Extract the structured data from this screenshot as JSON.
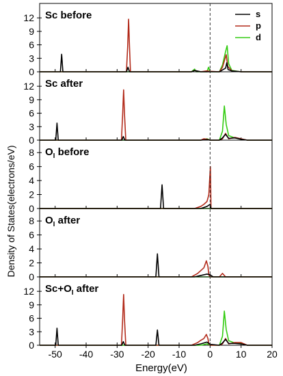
{
  "chart_data": {
    "type": "line",
    "xlabel": "Energy(eV)",
    "ylabel": "Density of States(electrons/eV)",
    "xlim": [
      -55,
      20
    ],
    "xticks": [
      -50,
      -40,
      -30,
      -20,
      -10,
      0,
      10,
      20
    ],
    "fermi_level": 0,
    "legend": {
      "placement": "top-right",
      "entries": [
        {
          "name": "s",
          "color": "#000000"
        },
        {
          "name": "p",
          "color": "#b22a1a"
        },
        {
          "name": "d",
          "color": "#33cc11"
        }
      ]
    },
    "panels": [
      {
        "title": "Sc before",
        "ylim": [
          0,
          14
        ],
        "yticks": [
          0,
          3,
          6,
          9,
          12
        ],
        "series": [
          {
            "name": "s",
            "points": [
              [
                -55,
                0
              ],
              [
                -48.3,
                0
              ],
              [
                -47.9,
                3.9
              ],
              [
                -47.5,
                0
              ],
              [
                -27,
                0
              ],
              [
                -26.5,
                1.0
              ],
              [
                -26,
                0
              ],
              [
                -6,
                0
              ],
              [
                -5,
                0.3
              ],
              [
                -3,
                0
              ],
              [
                3,
                0
              ],
              [
                4,
                0.4
              ],
              [
                5,
                0.8
              ],
              [
                5.4,
                2.0
              ],
              [
                5.8,
                0.5
              ],
              [
                7,
                0.2
              ],
              [
                10,
                0
              ],
              [
                20,
                0
              ]
            ]
          },
          {
            "name": "p",
            "points": [
              [
                -55,
                0
              ],
              [
                -27,
                0
              ],
              [
                -26.6,
                5.5
              ],
              [
                -26.3,
                11.7
              ],
              [
                -26,
                5.5
              ],
              [
                -25.7,
                0
              ],
              [
                -6,
                0
              ],
              [
                -5,
                0.3
              ],
              [
                -3,
                0
              ],
              [
                -1,
                0.2
              ],
              [
                0,
                0.1
              ],
              [
                3,
                0
              ],
              [
                4,
                1.0
              ],
              [
                5.2,
                3.8
              ],
              [
                5.7,
                1.2
              ],
              [
                7,
                0.2
              ],
              [
                10,
                0
              ],
              [
                20,
                0
              ]
            ]
          },
          {
            "name": "d",
            "points": [
              [
                -55,
                0
              ],
              [
                -6,
                0
              ],
              [
                -5,
                0.6
              ],
              [
                -4.5,
                0
              ],
              [
                -1,
                0
              ],
              [
                -0.5,
                1.0
              ],
              [
                0,
                0
              ],
              [
                3,
                0
              ],
              [
                4,
                1.5
              ],
              [
                5,
                4.5
              ],
              [
                5.5,
                5.8
              ],
              [
                6,
                1.8
              ],
              [
                7,
                0.3
              ],
              [
                10,
                0
              ],
              [
                20,
                0
              ]
            ]
          }
        ]
      },
      {
        "title": "Sc after",
        "ylim": [
          0,
          14
        ],
        "yticks": [
          0,
          3,
          6,
          9,
          12
        ],
        "series": [
          {
            "name": "s",
            "points": [
              [
                -55,
                0
              ],
              [
                -49.8,
                0
              ],
              [
                -49.4,
                3.8
              ],
              [
                -49,
                0
              ],
              [
                -28.5,
                0
              ],
              [
                -28,
                0.8
              ],
              [
                -27.5,
                0
              ],
              [
                -3,
                0
              ],
              [
                -1,
                0.1
              ],
              [
                0,
                0
              ],
              [
                3,
                0
              ],
              [
                4,
                0.5
              ],
              [
                5,
                1.3
              ],
              [
                6,
                0.4
              ],
              [
                8,
                0.5
              ],
              [
                10,
                0.2
              ],
              [
                12,
                0
              ],
              [
                20,
                0
              ]
            ]
          },
          {
            "name": "p",
            "points": [
              [
                -55,
                0
              ],
              [
                -28.6,
                0
              ],
              [
                -28.2,
                6
              ],
              [
                -27.9,
                11.2
              ],
              [
                -27.6,
                5.5
              ],
              [
                -27.2,
                0
              ],
              [
                -3,
                0
              ],
              [
                -2,
                0.3
              ],
              [
                -1,
                0.2
              ],
              [
                0,
                0
              ],
              [
                3,
                0
              ],
              [
                4,
                0.3
              ],
              [
                5,
                1.5
              ],
              [
                6,
                0.3
              ],
              [
                8,
                0.6
              ],
              [
                10,
                0.3
              ],
              [
                12,
                0
              ],
              [
                20,
                0
              ]
            ]
          },
          {
            "name": "d",
            "points": [
              [
                -55,
                0
              ],
              [
                -3,
                0
              ],
              [
                -1,
                0.3
              ],
              [
                0,
                0
              ],
              [
                3,
                0
              ],
              [
                4,
                2.0
              ],
              [
                4.6,
                7.6
              ],
              [
                5.2,
                3.5
              ],
              [
                6,
                1.0
              ],
              [
                8,
                0.5
              ],
              [
                10,
                0.2
              ],
              [
                12,
                0
              ],
              [
                20,
                0
              ]
            ]
          }
        ]
      },
      {
        "title": "O",
        "title_subscript": "I",
        "title_suffix": " before",
        "ylim": [
          0,
          9
        ],
        "yticks": [
          0,
          2,
          4,
          6,
          8
        ],
        "series": [
          {
            "name": "s",
            "points": [
              [
                -55,
                0
              ],
              [
                -16,
                0
              ],
              [
                -15.5,
                3.4
              ],
              [
                -15,
                0
              ],
              [
                -3,
                0
              ],
              [
                -1,
                0.3
              ],
              [
                0,
                0.6
              ],
              [
                0.3,
                0
              ],
              [
                20,
                0
              ]
            ]
          },
          {
            "name": "p",
            "points": [
              [
                -55,
                0
              ],
              [
                -5,
                0
              ],
              [
                -3,
                0.3
              ],
              [
                -2,
                0.6
              ],
              [
                -1,
                1.0
              ],
              [
                -0.4,
                2.0
              ],
              [
                -0.1,
                4.5
              ],
              [
                0.1,
                6.0
              ],
              [
                0.3,
                0
              ],
              [
                20,
                0
              ]
            ]
          },
          {
            "name": "d",
            "points": [
              [
                -55,
                0
              ],
              [
                20,
                0
              ]
            ]
          }
        ]
      },
      {
        "title": "O",
        "title_subscript": "I",
        "title_suffix": " after",
        "ylim": [
          0,
          9
        ],
        "yticks": [
          0,
          2,
          4,
          6,
          8
        ],
        "series": [
          {
            "name": "s",
            "points": [
              [
                -55,
                0
              ],
              [
                -17.5,
                0
              ],
              [
                -17,
                3.3
              ],
              [
                -16.5,
                0
              ],
              [
                -5,
                0
              ],
              [
                -3,
                0.2
              ],
              [
                -1,
                0.4
              ],
              [
                0,
                0.3
              ],
              [
                1,
                0
              ],
              [
                20,
                0
              ]
            ]
          },
          {
            "name": "p",
            "points": [
              [
                -55,
                0
              ],
              [
                -6,
                0
              ],
              [
                -4,
                0.5
              ],
              [
                -3,
                0.9
              ],
              [
                -2,
                1.3
              ],
              [
                -1.2,
                2.3
              ],
              [
                -0.7,
                1.5
              ],
              [
                -0.4,
                0.3
              ],
              [
                0,
                0
              ],
              [
                3,
                0
              ],
              [
                4,
                0.5
              ],
              [
                5,
                0
              ],
              [
                20,
                0
              ]
            ]
          },
          {
            "name": "d",
            "points": [
              [
                -55,
                0
              ],
              [
                20,
                0
              ]
            ]
          }
        ]
      },
      {
        "title": "Sc+O",
        "title_subscript": "I",
        "title_suffix": " after",
        "ylim": [
          0,
          14
        ],
        "yticks": [
          0,
          3,
          6,
          9,
          12
        ],
        "series": [
          {
            "name": "s",
            "points": [
              [
                -55,
                0
              ],
              [
                -49.8,
                0
              ],
              [
                -49.4,
                3.8
              ],
              [
                -49,
                0
              ],
              [
                -28.5,
                0
              ],
              [
                -28,
                0.8
              ],
              [
                -27.5,
                0
              ],
              [
                -17.5,
                0
              ],
              [
                -17,
                3.4
              ],
              [
                -16.5,
                0
              ],
              [
                -5,
                0
              ],
              [
                -3,
                0.3
              ],
              [
                -1,
                0.7
              ],
              [
                0,
                0.2
              ],
              [
                3,
                0
              ],
              [
                4,
                0.5
              ],
              [
                5,
                1.3
              ],
              [
                6,
                0.4
              ],
              [
                8,
                0.4
              ],
              [
                10,
                0.3
              ],
              [
                12,
                0
              ],
              [
                20,
                0
              ]
            ]
          },
          {
            "name": "p",
            "points": [
              [
                -55,
                0
              ],
              [
                -28.6,
                0
              ],
              [
                -28.2,
                6
              ],
              [
                -27.9,
                11.3
              ],
              [
                -27.6,
                5.5
              ],
              [
                -27.2,
                0
              ],
              [
                -6,
                0
              ],
              [
                -4,
                0.6
              ],
              [
                -3,
                1.1
              ],
              [
                -2,
                1.5
              ],
              [
                -1.2,
                2.4
              ],
              [
                -0.7,
                1.5
              ],
              [
                -0.4,
                0.3
              ],
              [
                0,
                0
              ],
              [
                3,
                0
              ],
              [
                4,
                0.3
              ],
              [
                5,
                1.5
              ],
              [
                6,
                0.3
              ],
              [
                8,
                0.6
              ],
              [
                10,
                0.6
              ],
              [
                12,
                0
              ],
              [
                20,
                0
              ]
            ]
          },
          {
            "name": "d",
            "points": [
              [
                -55,
                0
              ],
              [
                -3,
                0
              ],
              [
                -1,
                0.3
              ],
              [
                0,
                0
              ],
              [
                3,
                0
              ],
              [
                4,
                2.0
              ],
              [
                4.6,
                7.6
              ],
              [
                5.2,
                3.5
              ],
              [
                6,
                1.0
              ],
              [
                8,
                0.5
              ],
              [
                10,
                0.4
              ],
              [
                12,
                0
              ],
              [
                20,
                0
              ]
            ]
          }
        ]
      }
    ]
  }
}
